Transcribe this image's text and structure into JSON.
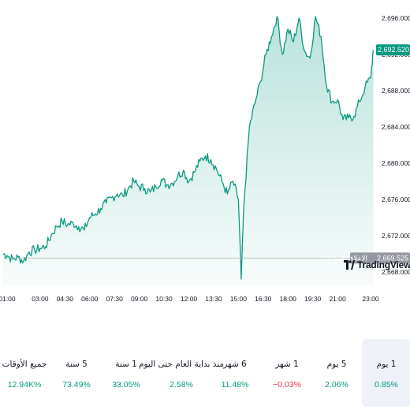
{
  "chart_data": {
    "type": "area",
    "x_ticks": [
      "01:00",
      "03:00",
      "04:30",
      "06:00",
      "07:30",
      "09:00",
      "10:30",
      "12:00",
      "13:30",
      "15:00",
      "16:30",
      "18:00",
      "19:30",
      "21:00",
      "23:00"
    ],
    "y_ticks": [
      "2,696.000",
      "2,692.000",
      "2,688.000",
      "2,684.000",
      "2,680.000",
      "2,676.000",
      "2,672.000",
      "2,668.000"
    ],
    "ylim": [
      2666.5,
      2697.5
    ],
    "last_price": "2,692.520",
    "previous_close": {
      "label": "الإغلاق السابق",
      "value": "2,669.525"
    },
    "series": [
      {
        "line_color": "#089981",
        "fill_color": "#089981",
        "x": [
          "00:45",
          "01:00",
          "01:20",
          "01:40",
          "02:00",
          "02:20",
          "02:40",
          "03:00",
          "03:20",
          "03:40",
          "04:00",
          "04:20",
          "04:40",
          "05:00",
          "05:20",
          "05:40",
          "06:00",
          "06:20",
          "06:40",
          "07:00",
          "07:20",
          "07:40",
          "08:00",
          "08:20",
          "08:40",
          "09:00",
          "09:20",
          "09:40",
          "10:00",
          "10:20",
          "10:40",
          "11:00",
          "11:20",
          "11:40",
          "12:00",
          "12:20",
          "12:40",
          "13:00",
          "13:20",
          "13:40",
          "14:00",
          "14:20",
          "14:40",
          "15:00",
          "15:10",
          "15:20",
          "15:40",
          "16:00",
          "16:20",
          "16:40",
          "17:00",
          "17:20",
          "17:40",
          "18:00",
          "18:20",
          "18:40",
          "19:00",
          "19:20",
          "19:40",
          "20:00",
          "20:20",
          "20:40",
          "21:00",
          "21:20",
          "21:40",
          "22:00",
          "22:20",
          "22:40",
          "23:00",
          "23:10"
        ],
        "y": [
          2670.0,
          2669.8,
          2669.4,
          2669.6,
          2669.2,
          2670.2,
          2670.4,
          2670.6,
          2670.8,
          2672.0,
          2673.0,
          2673.6,
          2673.2,
          2673.4,
          2673.0,
          2672.6,
          2674.0,
          2674.4,
          2675.0,
          2675.6,
          2676.2,
          2676.6,
          2676.4,
          2677.2,
          2678.0,
          2677.4,
          2677.2,
          2676.8,
          2677.4,
          2678.2,
          2677.6,
          2677.8,
          2678.6,
          2679.2,
          2678.0,
          2679.0,
          2680.2,
          2680.8,
          2680.4,
          2679.4,
          2678.0,
          2676.6,
          2678.0,
          2676.0,
          2667.2,
          2675.4,
          2684.0,
          2686.6,
          2689.0,
          2692.0,
          2694.0,
          2696.2,
          2692.0,
          2694.8,
          2693.4,
          2696.0,
          2692.4,
          2691.6,
          2696.2,
          2694.0,
          2688.6,
          2686.8,
          2687.0,
          2684.8,
          2685.0,
          2685.2,
          2686.8,
          2688.4,
          2689.4,
          2692.5
        ]
      }
    ]
  },
  "logo": {
    "text": "TradingView"
  },
  "periods": [
    {
      "label": "1 يوم",
      "value": "0.85%",
      "trend": "pos",
      "active": true
    },
    {
      "label": "5 يوم",
      "value": "2.06%",
      "trend": "pos",
      "active": false
    },
    {
      "label": "1 شهر",
      "value": "−0.03%",
      "trend": "neg",
      "active": false
    },
    {
      "label": "6 شهر",
      "value": "11.48%",
      "trend": "pos",
      "active": false
    },
    {
      "label": "منذ بداية العام حتى اليوم",
      "value": "2.58%",
      "trend": "pos",
      "active": false
    },
    {
      "label": "1 سنة",
      "value": "33.05%",
      "trend": "pos",
      "active": false
    },
    {
      "label": "5 سنة",
      "value": "73.49%",
      "trend": "pos",
      "active": false
    },
    {
      "label": "جميع الأوقات",
      "value": "12.94K%",
      "trend": "pos",
      "active": false
    }
  ]
}
